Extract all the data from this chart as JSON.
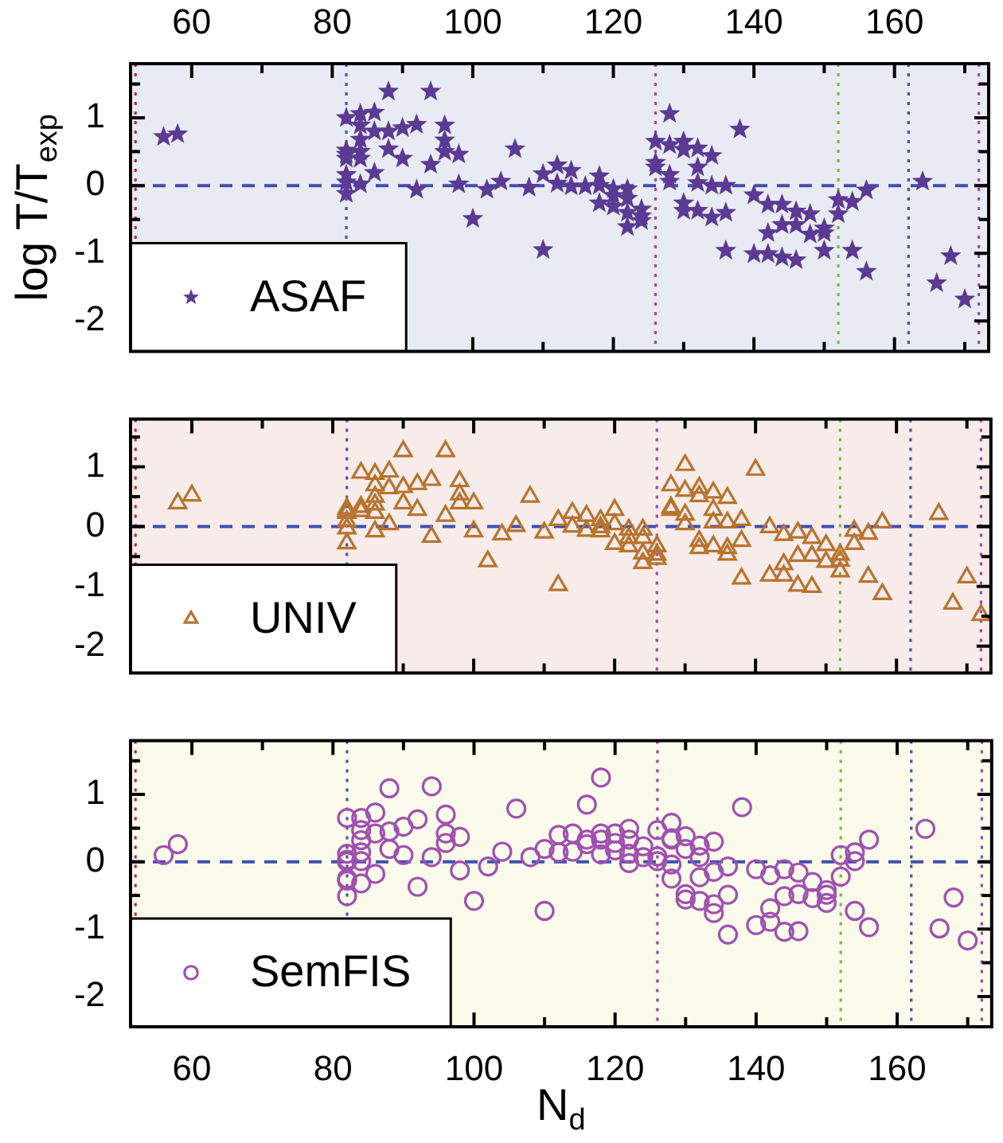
{
  "chart_data": [
    {
      "type": "scatter",
      "ylabel": "log T/T$_{exp}$",
      "legend": "bottom left",
      "tick_labels": "y",
      "xlim": [
        51.3,
        173.4
      ],
      "xticks": [
        60,
        {
          "value": 70,
          "label": null
        },
        80,
        {
          "value": 90,
          "label": null
        },
        100,
        {
          "value": 110,
          "label": null
        },
        120,
        {
          "value": 130,
          "label": null
        },
        140,
        {
          "value": 150,
          "label": null
        },
        160,
        {
          "value": 170,
          "label": null
        }
      ],
      "x2lim": [
        51.3,
        173.4
      ],
      "x2ticks": [
        60,
        {
          "value": 70,
          "label": null
        },
        80,
        {
          "value": 90,
          "label": null
        },
        100,
        {
          "value": 110,
          "label": null
        },
        120,
        {
          "value": 130,
          "label": null
        },
        140,
        {
          "value": 150,
          "label": null
        },
        160,
        {
          "value": 170,
          "label": null
        }
      ],
      "ylim": [
        -2.45,
        1.8
      ],
      "yticks": [
        -2,
        {
          "value": -1.5,
          "label": null
        },
        -1,
        {
          "value": -0.5,
          "label": null
        },
        0,
        {
          "value": 0.5,
          "label": null
        },
        1,
        {
          "value": 1.5,
          "label": null
        }
      ],
      "ref_lines": [
        {
          "axis": "y",
          "value": 0,
          "color": "#3d4fb0",
          "line_style": "dashed"
        },
        {
          "axis": "x",
          "value": 52,
          "color": "#b0304a",
          "line_style": "dotted"
        },
        {
          "axis": "x",
          "value": 82,
          "color": "#4a52b5",
          "line_style": "dotted"
        },
        {
          "axis": "x",
          "value": 126,
          "color": "#a048a8",
          "line_style": "dotted"
        },
        {
          "axis": "x",
          "value": 152,
          "color": "#78b840",
          "line_style": "dotted"
        },
        {
          "axis": "x",
          "value": 162,
          "color": "#4a52b5",
          "line_style": "dotted"
        },
        {
          "axis": "x",
          "value": 172,
          "color": "#a048a8",
          "line_style": "dotted"
        }
      ],
      "series": [
        {
          "name": "ASAF",
          "color": "#5b3a94",
          "marker": "star",
          "x": [
            56,
            58,
            82,
            82,
            82,
            82,
            82,
            82,
            82,
            84,
            84,
            84,
            84,
            84,
            84,
            86,
            86,
            86,
            88,
            88,
            88,
            90,
            90,
            92,
            92,
            94,
            94,
            96,
            96,
            96,
            98,
            98,
            100,
            102,
            104,
            106,
            108,
            110,
            110,
            112,
            112,
            114,
            114,
            116,
            118,
            118,
            118,
            120,
            120,
            120,
            122,
            122,
            122,
            122,
            124,
            124,
            124,
            126,
            126,
            126,
            128,
            128,
            128,
            128,
            130,
            130,
            130,
            130,
            132,
            132,
            132,
            132,
            134,
            134,
            134,
            136,
            136,
            136,
            138,
            140,
            140,
            142,
            142,
            142,
            144,
            144,
            144,
            146,
            146,
            146,
            148,
            148,
            150,
            150,
            150,
            152,
            152,
            154,
            154,
            156,
            156,
            164,
            166,
            168,
            170
          ],
          "values": [
            0.72,
            0.76,
            1.0,
            0.52,
            0.46,
            0.4,
            0.16,
            0.05,
            -0.12,
            1.06,
            0.89,
            0.68,
            0.5,
            0.4,
            0.02,
            1.08,
            0.8,
            0.19,
            1.39,
            0.8,
            0.54,
            0.85,
            0.4,
            0.9,
            -0.06,
            1.39,
            0.31,
            0.89,
            0.67,
            0.5,
            0.46,
            0.02,
            -0.49,
            -0.06,
            0.06,
            0.54,
            -0.03,
            0.17,
            -0.95,
            0.3,
            0.03,
            0.22,
            -0.01,
            -0.01,
            0.14,
            0,
            -0.26,
            -0.05,
            -0.15,
            -0.31,
            -0.05,
            -0.19,
            -0.4,
            -0.61,
            -0.35,
            -0.45,
            -0.52,
            0.65,
            0.34,
            0.27,
            1.06,
            0.6,
            0.16,
            0.06,
            0.65,
            0.53,
            -0.26,
            -0.37,
            0.55,
            0.27,
            0.04,
            -0.37,
            0.44,
            0,
            -0.47,
            0,
            -0.4,
            -0.96,
            0.83,
            -0.14,
            -1.01,
            -0.28,
            -0.7,
            -1.01,
            -0.28,
            -0.58,
            -1.06,
            -0.38,
            -0.58,
            -1.1,
            -0.42,
            -0.72,
            -0.63,
            -0.7,
            -0.96,
            -0.21,
            -0.42,
            -0.24,
            -0.96,
            -0.07,
            -1.27,
            0.06,
            -1.44,
            -1.04,
            -1.68
          ]
        }
      ]
    },
    {
      "type": "scatter",
      "legend": "bottom left",
      "tick_labels": "y",
      "xlim": [
        51.3,
        173.4
      ],
      "xticks": [
        60,
        {
          "value": 70,
          "label": null
        },
        80,
        {
          "value": 90,
          "label": null
        },
        100,
        {
          "value": 110,
          "label": null
        },
        120,
        {
          "value": 130,
          "label": null
        },
        140,
        {
          "value": 150,
          "label": null
        },
        160,
        {
          "value": 170,
          "label": null
        }
      ],
      "ylim": [
        -2.45,
        1.8
      ],
      "yticks": [
        -2,
        {
          "value": -1.5,
          "label": null
        },
        -1,
        {
          "value": -0.5,
          "label": null
        },
        0,
        {
          "value": 0.5,
          "label": null
        },
        1,
        {
          "value": 1.5,
          "label": null
        }
      ],
      "ref_lines": [
        {
          "axis": "y",
          "value": 0,
          "color": "#3d4fb0",
          "line_style": "dashed"
        },
        {
          "axis": "x",
          "value": 52,
          "color": "#b0304a",
          "line_style": "dotted"
        },
        {
          "axis": "x",
          "value": 82,
          "color": "#4a52b5",
          "line_style": "dotted"
        },
        {
          "axis": "x",
          "value": 126,
          "color": "#a048a8",
          "line_style": "dotted"
        },
        {
          "axis": "x",
          "value": 152,
          "color": "#78b840",
          "line_style": "dotted"
        },
        {
          "axis": "x",
          "value": 162,
          "color": "#4a52b5",
          "line_style": "dotted"
        },
        {
          "axis": "x",
          "value": 172,
          "color": "#a048a8",
          "line_style": "dotted"
        }
      ],
      "series": [
        {
          "name": "UNIV",
          "color": "#b8732f",
          "marker": "triangle",
          "x": [
            58,
            60,
            82,
            82,
            82,
            82,
            82,
            82,
            84,
            84,
            84,
            86,
            86,
            86,
            86,
            86,
            86,
            88,
            88,
            88,
            90,
            90,
            90,
            92,
            92,
            94,
            94,
            96,
            96,
            98,
            98,
            98,
            100,
            100,
            102,
            104,
            106,
            108,
            110,
            112,
            112,
            114,
            114,
            116,
            116,
            118,
            118,
            118,
            120,
            120,
            120,
            122,
            122,
            122,
            124,
            124,
            124,
            124,
            126,
            126,
            126,
            128,
            128,
            128,
            130,
            130,
            130,
            130,
            132,
            132,
            132,
            132,
            134,
            134,
            134,
            134,
            136,
            136,
            136,
            136,
            138,
            138,
            138,
            140,
            142,
            142,
            144,
            144,
            144,
            146,
            146,
            146,
            148,
            148,
            148,
            150,
            150,
            152,
            152,
            152,
            154,
            154,
            156,
            156,
            158,
            158,
            166,
            168,
            170,
            172
          ],
          "values": [
            0.39,
            0.52,
            0.3,
            0.26,
            0.23,
            0.09,
            -0.03,
            -0.28,
            0.9,
            0.33,
            0.26,
            0.88,
            0.69,
            0.5,
            0.37,
            0.23,
            -0.08,
            0.92,
            0.64,
            0.04,
            1.26,
            0.66,
            0.39,
            0.71,
            0.28,
            0.78,
            -0.17,
            1.26,
            0.18,
            0.76,
            0.54,
            0.39,
            0.39,
            -0.08,
            -0.58,
            -0.13,
            0.01,
            0.5,
            -0.1,
            0.11,
            -0.98,
            0.23,
            0,
            0.18,
            -0.07,
            0.11,
            -0.01,
            -0.08,
            0.28,
            0.04,
            -0.29,
            -0.05,
            -0.19,
            -0.33,
            -0.05,
            -0.19,
            -0.45,
            -0.61,
            -0.33,
            -0.47,
            -0.54,
            0.69,
            0.32,
            0.28,
            1.03,
            0.6,
            0.2,
            0.04,
            0.65,
            0.51,
            -0.24,
            -0.36,
            0.57,
            0.28,
            0.07,
            -0.33,
            0.48,
            0.07,
            -0.36,
            -0.47,
            0.11,
            -0.24,
            -0.87,
            0.95,
            -0.01,
            -0.82,
            -0.14,
            -0.63,
            -0.82,
            -0.1,
            -0.49,
            -0.99,
            -0.19,
            -0.49,
            -1.01,
            -0.31,
            -0.59,
            -0.47,
            -0.57,
            -0.75,
            -0.07,
            -0.29,
            -0.12,
            -0.84,
            0.07,
            -1.13,
            0.21,
            -1.29,
            -0.85,
            -1.48
          ]
        }
      ]
    },
    {
      "type": "scatter",
      "xlabel": "N$_{d}$",
      "legend": "bottom left",
      "tick_labels": "xy",
      "xlim": [
        51.3,
        173.4
      ],
      "xticks": [
        60,
        {
          "value": 70,
          "label": null
        },
        80,
        {
          "value": 90,
          "label": null
        },
        100,
        {
          "value": 110,
          "label": null
        },
        120,
        {
          "value": 130,
          "label": null
        },
        140,
        {
          "value": 150,
          "label": null
        },
        160,
        {
          "value": 170,
          "label": null
        }
      ],
      "ylim": [
        -2.45,
        1.8
      ],
      "yticks": [
        -2,
        {
          "value": -1.5,
          "label": null
        },
        -1,
        {
          "value": -0.5,
          "label": null
        },
        0,
        {
          "value": 0.5,
          "label": null
        },
        1,
        {
          "value": 1.5,
          "label": null
        }
      ],
      "ref_lines": [
        {
          "axis": "y",
          "value": 0,
          "color": "#3d4fb0",
          "line_style": "dashed"
        },
        {
          "axis": "x",
          "value": 52,
          "color": "#b0304a",
          "line_style": "dotted"
        },
        {
          "axis": "x",
          "value": 82,
          "color": "#4a52b5",
          "line_style": "dotted"
        },
        {
          "axis": "x",
          "value": 126,
          "color": "#a048a8",
          "line_style": "dotted"
        },
        {
          "axis": "x",
          "value": 152,
          "color": "#78b840",
          "line_style": "dotted"
        },
        {
          "axis": "x",
          "value": 162,
          "color": "#4a52b5",
          "line_style": "dotted"
        },
        {
          "axis": "x",
          "value": 172,
          "color": "#a048a8",
          "line_style": "dotted"
        }
      ],
      "series": [
        {
          "name": "SemFIS",
          "color": "#a050b0",
          "marker": "circle",
          "x": [
            56,
            58,
            82,
            82,
            82,
            82,
            82,
            82,
            82,
            84,
            84,
            84,
            84,
            84,
            84,
            86,
            86,
            86,
            88,
            88,
            88,
            90,
            90,
            92,
            92,
            94,
            94,
            96,
            96,
            96,
            98,
            98,
            100,
            102,
            104,
            106,
            108,
            110,
            110,
            112,
            112,
            114,
            114,
            116,
            116,
            116,
            118,
            118,
            118,
            118,
            120,
            120,
            120,
            122,
            122,
            122,
            122,
            124,
            124,
            126,
            126,
            126,
            128,
            128,
            128,
            128,
            128,
            130,
            130,
            130,
            130,
            132,
            132,
            132,
            132,
            134,
            134,
            134,
            134,
            136,
            136,
            136,
            138,
            140,
            140,
            142,
            142,
            142,
            144,
            144,
            144,
            146,
            146,
            146,
            148,
            148,
            150,
            150,
            150,
            152,
            152,
            154,
            154,
            154,
            156,
            156,
            164,
            166,
            168,
            170
          ],
          "values": [
            0.1,
            0.26,
            0.65,
            0.12,
            0.03,
            0,
            -0.25,
            -0.28,
            -0.51,
            0.65,
            0.47,
            0.32,
            0.14,
            0.01,
            -0.32,
            0.73,
            0.42,
            -0.18,
            1.09,
            0.45,
            0.19,
            0.52,
            0.1,
            0.63,
            -0.37,
            1.12,
            0.07,
            0.7,
            0.42,
            0.28,
            0.37,
            -0.13,
            -0.58,
            -0.07,
            0.15,
            0.79,
            0.07,
            0.19,
            -0.73,
            0.4,
            0.14,
            0.42,
            0.15,
            0.85,
            0.33,
            0.26,
            1.25,
            0.42,
            0.33,
            0.11,
            0.42,
            0.28,
            0.17,
            0.49,
            0.33,
            0.12,
            -0.02,
            0.23,
            0.07,
            0.47,
            0.08,
            0.01,
            0.58,
            0.35,
            0.33,
            -0.04,
            -0.25,
            0.38,
            0.19,
            -0.48,
            -0.56,
            0.24,
            0.07,
            -0.23,
            -0.58,
            0.3,
            -0.15,
            -0.63,
            -0.76,
            -0.07,
            -0.49,
            -1.08,
            0.81,
            -0.11,
            -0.94,
            -0.2,
            -0.69,
            -0.89,
            -0.11,
            -0.51,
            -1.04,
            -0.16,
            -0.48,
            -1.03,
            -0.3,
            -0.54,
            -0.42,
            -0.49,
            -0.61,
            0.1,
            -0.22,
            0.14,
            0.01,
            -0.73,
            0.33,
            -0.97,
            0.49,
            -0.99,
            -0.53,
            -1.17
          ]
        }
      ]
    }
  ]
}
